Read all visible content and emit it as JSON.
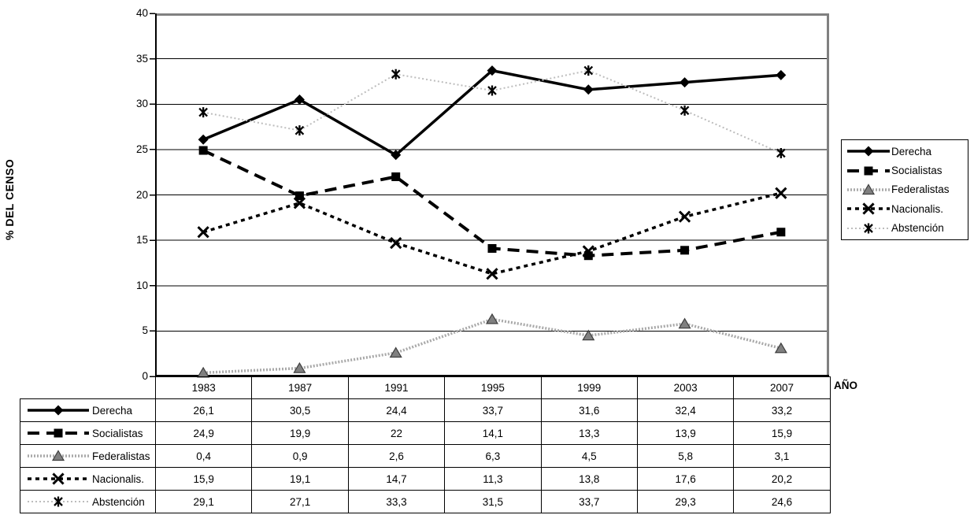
{
  "chart_data": {
    "type": "line",
    "x_axis_title": "AÑO",
    "y_axis_title": "% DEL CENSO",
    "categories": [
      "1983",
      "1987",
      "1991",
      "1995",
      "1999",
      "2003",
      "2007"
    ],
    "y_ticks": [
      0,
      5,
      10,
      15,
      20,
      25,
      30,
      35,
      40
    ],
    "ylim": [
      0,
      40
    ],
    "grid": true,
    "legend_position": "right",
    "plot_border_color": "#808080",
    "axis_color": "#000000",
    "gridline_color": "#000000",
    "series": [
      {
        "name": "Derecha",
        "values": [
          26.1,
          30.5,
          24.4,
          33.7,
          31.6,
          32.4,
          33.2
        ],
        "display_values": [
          "26,1",
          "30,5",
          "24,4",
          "33,7",
          "31,6",
          "32,4",
          "33,2"
        ],
        "marker": "diamond",
        "line": "solid",
        "color": "#000000",
        "marker_color": "#000000"
      },
      {
        "name": "Socialistas",
        "values": [
          24.9,
          19.9,
          22,
          14.1,
          13.3,
          13.9,
          15.9
        ],
        "display_values": [
          "24,9",
          "19,9",
          "22",
          "14,1",
          "13,3",
          "13,9",
          "15,9"
        ],
        "marker": "square",
        "line": "long-dash",
        "color": "#000000",
        "marker_color": "#000000"
      },
      {
        "name": "Federalistas",
        "values": [
          0.4,
          0.9,
          2.6,
          6.3,
          4.5,
          5.8,
          3.1
        ],
        "display_values": [
          "0,4",
          "0,9",
          "2,6",
          "6,3",
          "4,5",
          "5,8",
          "3,1"
        ],
        "marker": "triangle",
        "line": "textured",
        "color": "#a9a9a9",
        "marker_color": "#808080"
      },
      {
        "name": "Nacionalis.",
        "values": [
          15.9,
          19.1,
          14.7,
          11.3,
          13.8,
          17.6,
          20.2
        ],
        "display_values": [
          "15,9",
          "19,1",
          "14,7",
          "11,3",
          "13,8",
          "17,6",
          "20,2"
        ],
        "marker": "x-cross",
        "line": "dot-dash",
        "color": "#000000",
        "marker_color": "#000000"
      },
      {
        "name": "Abstención",
        "values": [
          29.1,
          27.1,
          33.3,
          31.5,
          33.7,
          29.3,
          24.6
        ],
        "display_values": [
          "29,1",
          "27,1",
          "33,3",
          "31,5",
          "33,7",
          "29,3",
          "24,6"
        ],
        "marker": "asterisk",
        "line": "dotted",
        "color": "#bdbdbd",
        "marker_color": "#000000"
      }
    ]
  }
}
